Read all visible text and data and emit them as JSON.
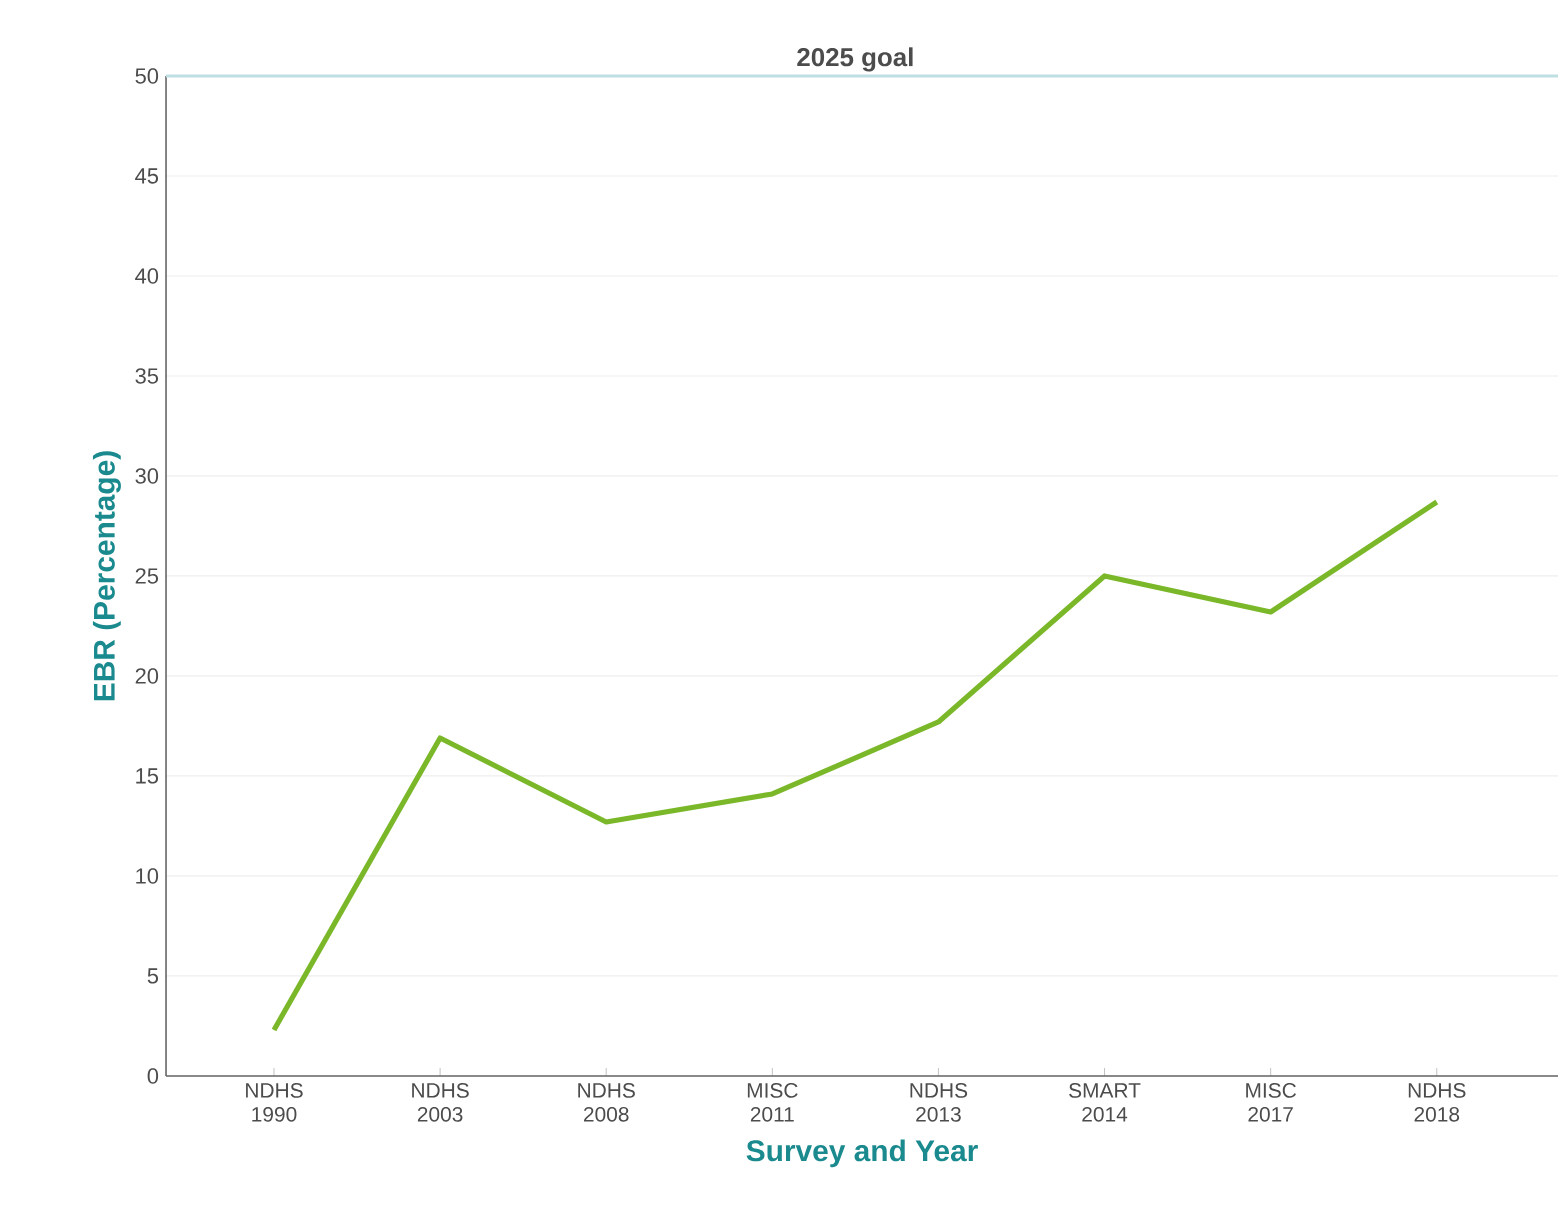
{
  "chart_data": {
    "type": "line",
    "categories": [
      "NDHS 1990",
      "NDHS 2003",
      "NDHS 2008",
      "MISC 2011",
      "NDHS 2013",
      "SMART 2014",
      "MISC 2017",
      "NDHS 2018"
    ],
    "series": [
      {
        "color": "#7ab829",
        "values": [
          2.3,
          16.9,
          12.7,
          14.1,
          17.7,
          25.0,
          23.2,
          28.7
        ]
      }
    ],
    "xlabel": "Survey and Year",
    "ylabel": "EBR (Percentage)",
    "ylim": [
      0,
      50
    ],
    "yticks": [
      0,
      5,
      10,
      15,
      20,
      25,
      30,
      35,
      40,
      45,
      50
    ],
    "grid": "y",
    "ref_lines": [
      {
        "axis": "y",
        "value": 50,
        "label": "2025 goal",
        "color": "#bfe0e3"
      }
    ]
  }
}
